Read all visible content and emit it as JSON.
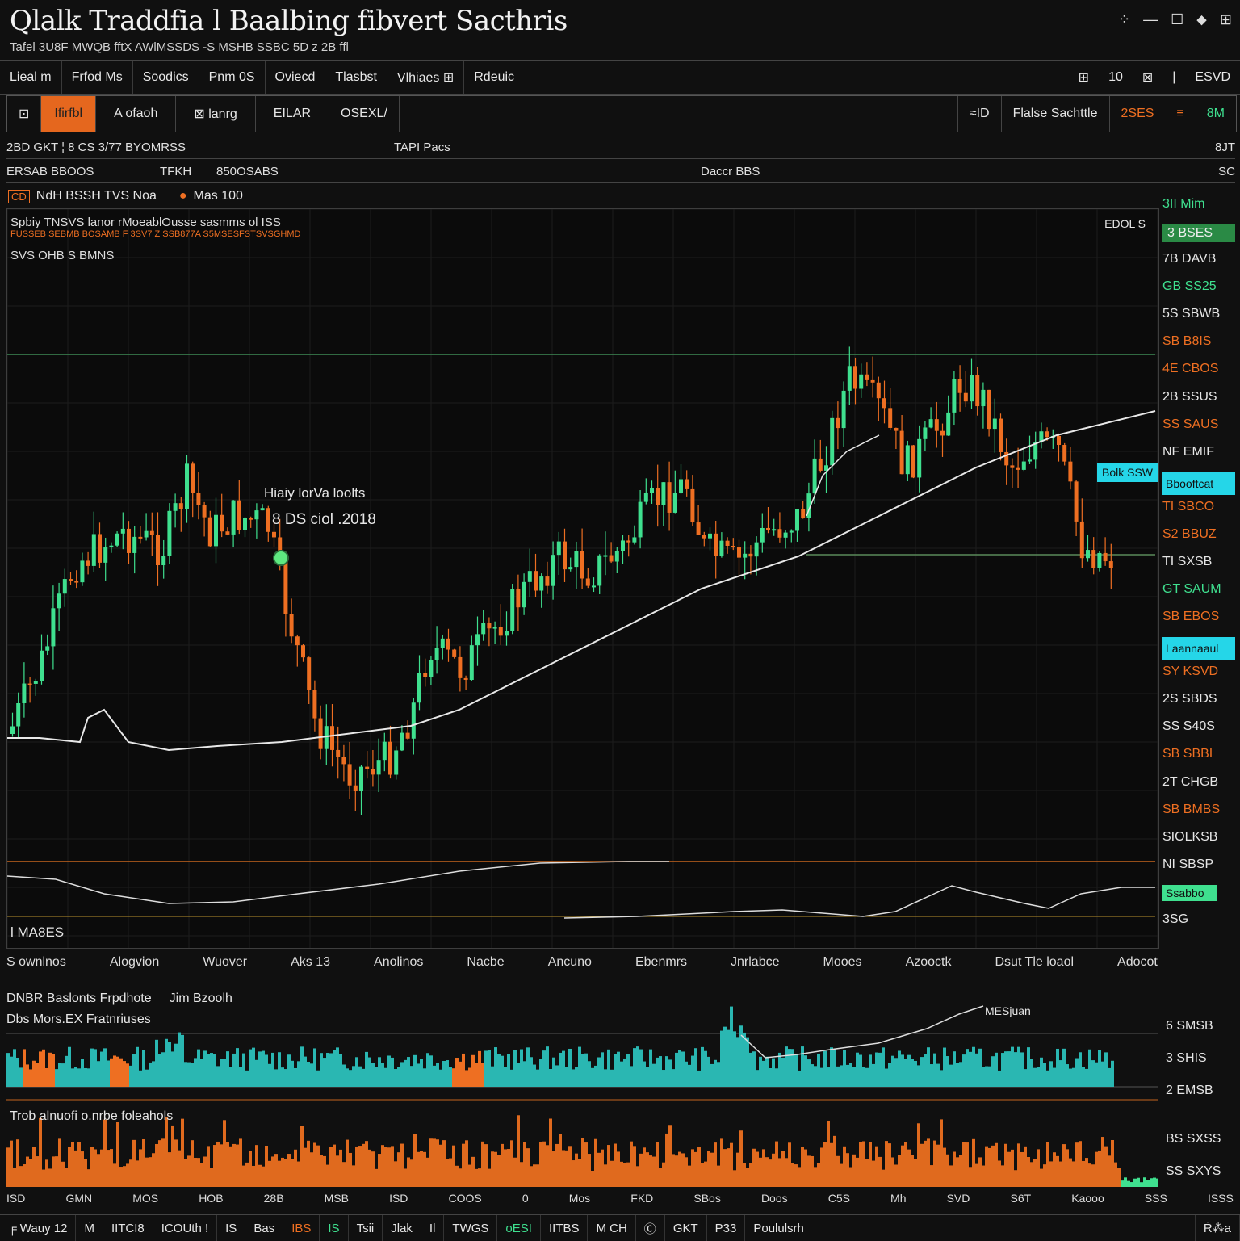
{
  "window": {
    "title": "Qlalk Traddfia l Baalbing fibvert Sacthris",
    "subtitle": "Tafel 3U8F MWQB fftX AWlMSSDS ‑S MSHB SSBC 5D z 2B ffl",
    "controls": [
      "⁘",
      "—",
      "☐",
      "⬥",
      "⊞"
    ]
  },
  "menu": {
    "items": [
      "Lieal m",
      "Frfod Ms",
      "Soodics",
      "Pnm 0S",
      "Oviecd",
      "Tlasbst",
      "Vlhiaes ⊞",
      "Rdeuic"
    ],
    "right": [
      "⊞",
      "10",
      "⊠",
      "|",
      "ESVD"
    ]
  },
  "toolbar": {
    "items": [
      "⊡",
      "Ifirfbl",
      "A ofaoh",
      "⊠ lanrg",
      "EILAR",
      "OSEXL/"
    ],
    "right": [
      "≈ID",
      "Flalse Sachttle",
      "2SES",
      "≡",
      "8M"
    ]
  },
  "info": {
    "row1_left": "2BD GKT ¦ 8 CS 3/77 BYOMRSS",
    "row1_mid": "TAPI Pacs",
    "row1_right": "8JT",
    "row2_left": "ERSAB BBOOS",
    "row2_mid1": "TFKH",
    "row2_mid2": "850OSABS",
    "row2_right1": "Daccr BBS",
    "row2_right2": "SC"
  },
  "indicator_bar": {
    "badge1": "CD",
    "label1": "NdH  BSSH TVS  Noa",
    "badge2": "●",
    "label2": "Mas 100"
  },
  "chart": {
    "legend": [
      "Spbiy TNSVS lanor rMoeablOusse  sasmms ol ISS",
      "FUSSEB SEBMB BOSAMB  F 3SV7 Z SSB877A S5MSESFSTSVSGHMD",
      "SVS OHB S BMNS"
    ],
    "corner_label": "EDOL S",
    "annotation_title": "Hiaiy lorVa loolts",
    "annotation_value": "8 DS ciol .2018",
    "bottom_legend": "l MA8ES",
    "last_tag": "Bolk SSW",
    "colors": {
      "up": "#3fe08f",
      "down": "#ee6f22",
      "ma": "#e8e8e8",
      "tag": "#25d6e8"
    }
  },
  "price_axis": [
    {
      "label": "3II Mim",
      "color": "#3fe08f"
    },
    {
      "label": "3  BSES",
      "color": "#3fe08f",
      "badge": true
    },
    {
      "label": "7B DAVB",
      "color": "#e6e6e6"
    },
    {
      "label": "GB SS25",
      "color": "#3fe08f"
    },
    {
      "label": "5S  SBWB",
      "color": "#e6e6e6"
    },
    {
      "label": "SB  B8IS",
      "color": "#ee6f22"
    },
    {
      "label": "4E  CBOS",
      "color": "#ee6f22"
    },
    {
      "label": "2B  SSUS",
      "color": "#e6e6e6"
    },
    {
      "label": "SS  SAUS",
      "color": "#ee6f22"
    },
    {
      "label": "NF  EMIF",
      "color": "#e6e6e6"
    },
    {
      "label": "Bbooftcat",
      "color": "#111",
      "tag": true
    },
    {
      "label": "TI  SBCO",
      "color": "#ee6f22"
    },
    {
      "label": "S2  BBUZ",
      "color": "#ee6f22"
    },
    {
      "label": "TI  SXSB",
      "color": "#e6e6e6"
    },
    {
      "label": "GT SAUM",
      "color": "#3fe08f"
    },
    {
      "label": "SB  EBOS",
      "color": "#ee6f22"
    },
    {
      "label": "Laannaaul",
      "color": "#111",
      "tag": true
    },
    {
      "label": "SY  KSVD",
      "color": "#ee6f22"
    },
    {
      "label": "2S  SBDS",
      "color": "#e6e6e6"
    },
    {
      "label": "SS  S40S",
      "color": "#e6e6e6"
    },
    {
      "label": "SB  SBBI",
      "color": "#ee6f22"
    },
    {
      "label": "2T  CHGB",
      "color": "#e6e6e6"
    },
    {
      "label": "SB  BMBS",
      "color": "#ee6f22"
    },
    {
      "label": "SIOLKSB",
      "color": "#e6e6e6"
    },
    {
      "label": "NI  SBSP",
      "color": "#e6e6e6"
    },
    {
      "label": "Ssabbo",
      "color": "#111",
      "green": true
    },
    {
      "label": "3SG",
      "color": "#e6e6e6"
    }
  ],
  "time_axis": [
    "S ownlnos",
    "Alogvion",
    "Wuover",
    "Aks 13",
    "Anolinos",
    "Nacbe",
    "Ancuno",
    "Ebenmrs",
    "Jnrlabce",
    "Mooes",
    "Azooctk",
    "Dsut  Tle loaol",
    "Adocot"
  ],
  "volume": {
    "title": "DNBR Baslonts Frpdhote",
    "title2": "Jim Bzoolh",
    "sub": "Dbs Mors.EX Fratnriuses",
    "ma_label": "MESjuan",
    "sub2": "Trob alnuofi o.nrbe foleahols",
    "axis": [
      "6 SMSB",
      "3 SHIS",
      "2 EMSB",
      "BS SXSS",
      "SS SXYS"
    ]
  },
  "bottom_axis": [
    "ISD",
    "GMN",
    "MOS",
    "HOB",
    "28B",
    "MSB",
    "ISD",
    "COOS",
    "0",
    "Mos",
    "FKD",
    "SBos",
    "Doos",
    "C5S",
    "Mh",
    "SVD",
    "S6T",
    "Kaooo",
    "SSS",
    "ISSS"
  ],
  "status": [
    "╒ Wauy 12",
    "Ṁ",
    "IITCI8",
    "ICOUth !",
    "IS",
    "Bas",
    "IBS",
    "IS",
    "Tsii",
    "Jlak",
    "Il",
    "TWGS",
    "oESI",
    "IITBS",
    "M CH",
    "Ⓒ",
    "GKT",
    "P33",
    "Poululsrh",
    "Ṙ⁂a"
  ]
}
